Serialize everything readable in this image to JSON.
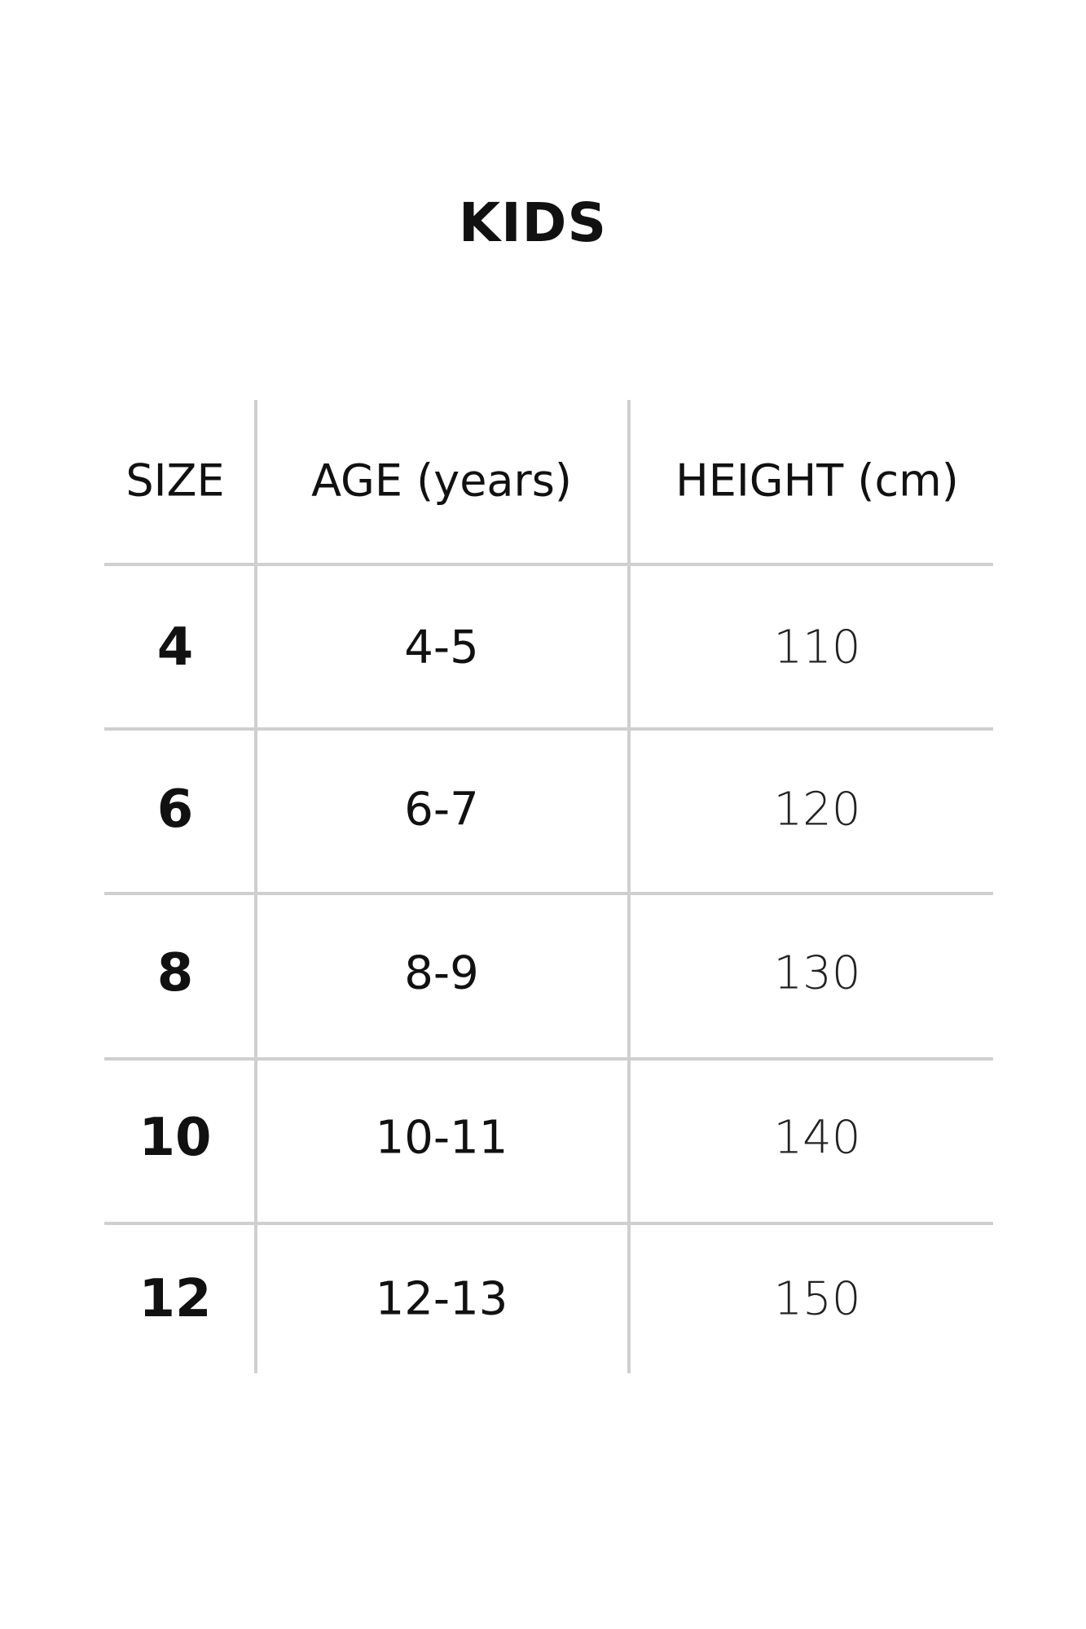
{
  "title": "KIDS",
  "table": {
    "headers": [
      "SIZE",
      "AGE (years)",
      "HEIGHT (cm)"
    ],
    "rows": [
      {
        "size": "4",
        "age": "4-5",
        "height": "110"
      },
      {
        "size": "6",
        "age": "6-7",
        "height": "120"
      },
      {
        "size": "8",
        "age": "8-9",
        "height": "130"
      },
      {
        "size": "10",
        "age": "10-11",
        "height": "140"
      },
      {
        "size": "12",
        "age": "12-13",
        "height": "150"
      }
    ]
  },
  "colors": {
    "text": "#111111",
    "grid": "#cfcfcf",
    "background": "#ffffff"
  }
}
